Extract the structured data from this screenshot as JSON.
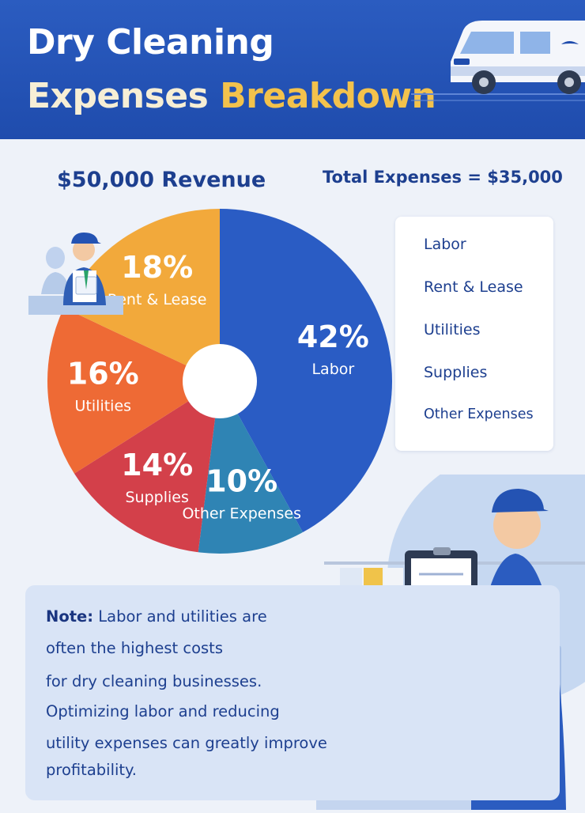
{
  "title": {
    "line1": "Dry Cleaning",
    "line2_part1": "Expenses ",
    "line2_part2": "Breakdown"
  },
  "revenue_label": "$50,000 Revenue",
  "total_expenses_label": "Total Expenses = $35,000",
  "legend": [
    "Labor",
    "Rent & Lease",
    "Utilities",
    "Supplies",
    "Other Expenses"
  ],
  "note": {
    "label": "Note:",
    "line1": " Labor and utilities are",
    "line2": "often the highest costs",
    "line3": "for dry cleaning businesses.",
    "line4": "Optimizing labor and reducing",
    "line5": "utility expenses can greatly improve",
    "line6": "profitability."
  },
  "colors": {
    "header": "#2457bd",
    "title_accent": "#f3c24c",
    "text": "#1d3f8f",
    "labor": "#2a5cc4",
    "rent_lease": "#f2a93b",
    "utilities": "#ee6a35",
    "supplies": "#d3404a",
    "other_expenses": "#2f84b4"
  },
  "chart_data": {
    "type": "pie",
    "categories": [
      "Labor",
      "Other Expenses",
      "Supplies",
      "Utilities",
      "Rent & Lease"
    ],
    "values": [
      42,
      10,
      14,
      16,
      18
    ],
    "value_labels": [
      "42%",
      "10%",
      "14%",
      "16%",
      "18%"
    ],
    "slice_labels": [
      "Labor",
      "Other Expenses",
      "Supplies",
      "Utilities",
      "Rent & Lease"
    ],
    "colors": [
      "#2a5cc4",
      "#2f84b4",
      "#d3404a",
      "#ee6a35",
      "#f2a93b"
    ],
    "donut": true,
    "legend_placement": "right"
  }
}
